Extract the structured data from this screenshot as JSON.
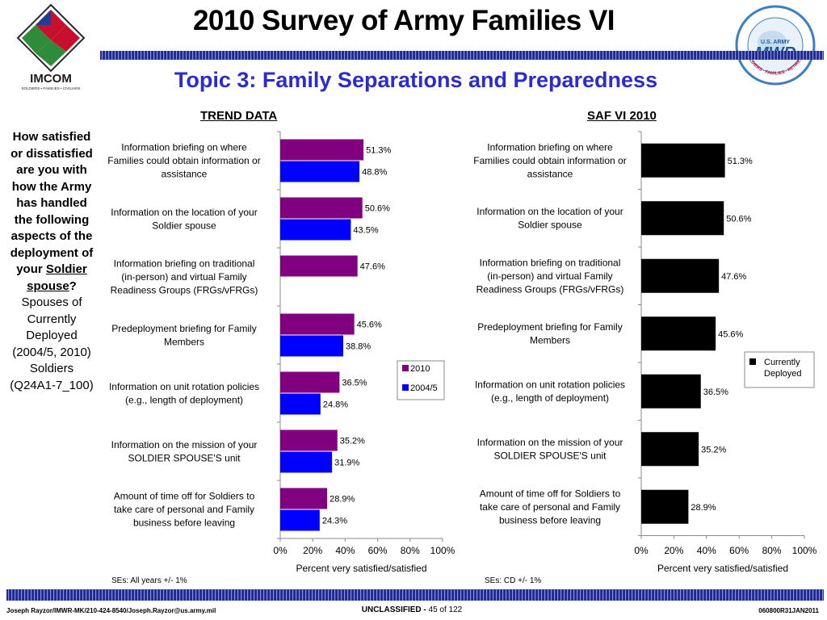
{
  "header": {
    "title": "2010 Survey of Army Families VI",
    "subtitle": "Topic 3: Family Separations and Preparedness",
    "left_logo": {
      "icon": "imcom-logo-icon",
      "text": "IMCOM",
      "tagline": "SOLDIERS • FAMILIES • CIVILIANS"
    },
    "right_logo": {
      "icon": "army-mwr-logo-icon",
      "text_top": "U.S. ARMY",
      "text_main": "MWR",
      "ring_text": "SOLDIERS · FAMILIES · RETIREES · CIVILIANS"
    }
  },
  "question": {
    "text_before": "How satisfied or dissatisfied are you with how the Army has handled the following aspects of the deployment of your",
    "text_underlined": "Soldier spouse",
    "text_after": "?",
    "population": "Spouses of Currently Deployed (2004/5, 2010) Soldiers (Q24A1-7_100)"
  },
  "colors": {
    "series_2010": "#800080",
    "series_2004": "#0000ff",
    "series_cd": "#000000",
    "title_blue": "#2b2bd0",
    "band": "#2d3aa6"
  },
  "chart_data": [
    {
      "type": "bar",
      "orientation": "horizontal",
      "title": "TREND DATA",
      "categories": [
        "Information briefing on where Families could obtain information or assistance",
        "Information on the location of your Soldier spouse",
        "Information briefing on traditional (in-person) and virtual Family Readiness Groups (FRGs/vFRGs)",
        "Predeployment briefing for Family Members",
        "Information on unit rotation policies (e.g., length of deployment)",
        "Information on the mission of your SOLDIER SPOUSE'S unit",
        "Amount of time off for Soldiers to take care of personal and Family business before leaving"
      ],
      "category_lines": [
        [
          "Information briefing on where",
          "Families could obtain information or",
          "assistance"
        ],
        [
          "Information on the location of your",
          "Soldier spouse"
        ],
        [
          "Information briefing on traditional",
          "(in-person) and virtual Family",
          "Readiness Groups (FRGs/vFRGs)"
        ],
        [
          "Predeployment briefing for Family",
          "Members"
        ],
        [
          "Information on unit rotation policies",
          "(e.g., length of deployment)"
        ],
        [
          "Information on the mission of your",
          "SOLDIER SPOUSE'S unit"
        ],
        [
          "Amount of time off for Soldiers to",
          "take care of personal and Family",
          "business before leaving"
        ]
      ],
      "series": [
        {
          "name": "2010",
          "values": [
            51.3,
            50.6,
            47.6,
            45.6,
            36.5,
            35.2,
            28.9
          ],
          "labels": [
            "51.3%",
            "50.6%",
            "47.6%",
            "45.6%",
            "36.5%",
            "35.2%",
            "28.9%"
          ]
        },
        {
          "name": "2004/5",
          "values": [
            48.8,
            43.5,
            null,
            38.8,
            24.8,
            31.9,
            24.3
          ],
          "labels": [
            "48.8%",
            "43.5%",
            "",
            "38.8%",
            "24.8%",
            "31.9%",
            "24.3%"
          ]
        }
      ],
      "xlabel": "Percent very satisfied/satisfied",
      "xlim": [
        0,
        100
      ],
      "ticks": [
        "0%",
        "20%",
        "40%",
        "60%",
        "80%",
        "100%"
      ],
      "legend": "right",
      "note": "SEs: All years +/- 1%"
    },
    {
      "type": "bar",
      "orientation": "horizontal",
      "title": "SAF VI 2010",
      "categories": [
        "Information briefing on where Families could obtain information or assistance",
        "Information on the location of your Soldier spouse",
        "Information briefing on traditional (in-person) and virtual Family Readiness Groups (FRGs/vFRGs)",
        "Predeployment briefing for Family Members",
        "Information on unit rotation policies (e.g., length of deployment)",
        "Information on the mission of your SOLDIER SPOUSE'S unit",
        "Amount of time off for Soldiers to take care of personal and Family business before leaving"
      ],
      "category_lines": [
        [
          "Information briefing on where",
          "Families could obtain information or",
          "assistance"
        ],
        [
          "Information on the location of your",
          "Soldier spouse"
        ],
        [
          "Information briefing on traditional",
          "(in-person) and virtual Family",
          "Readiness Groups (FRGs/vFRGs)"
        ],
        [
          "Predeployment briefing for Family",
          "Members"
        ],
        [
          "Information on unit rotation policies",
          "(e.g., length of deployment)"
        ],
        [
          "Information on the mission of your",
          "SOLDIER SPOUSE'S unit"
        ],
        [
          "Amount of time off for Soldiers to",
          "take care of personal and Family",
          "business before leaving"
        ]
      ],
      "series": [
        {
          "name": "Currently Deployed",
          "name_lines": [
            "Currently",
            "Deployed"
          ],
          "values": [
            51.3,
            50.6,
            47.6,
            45.6,
            36.5,
            35.2,
            28.9
          ],
          "labels": [
            "51.3%",
            "50.6%",
            "47.6%",
            "45.6%",
            "36.5%",
            "35.2%",
            "28.9%"
          ]
        }
      ],
      "xlabel": "Percent very satisfied/satisfied",
      "xlim": [
        0,
        100
      ],
      "ticks": [
        "0%",
        "20%",
        "40%",
        "60%",
        "80%",
        "100%"
      ],
      "legend": "right",
      "note": "SEs: CD +/- 1%"
    }
  ],
  "footer": {
    "contact": "Joseph Rayzor/IMWR-MK/210-424-8540/Joseph.Rayzor@us.army.mil",
    "classification": "UNCLASSIFIED -",
    "page": "45 of 122",
    "code": "060800R31JAN2011"
  }
}
